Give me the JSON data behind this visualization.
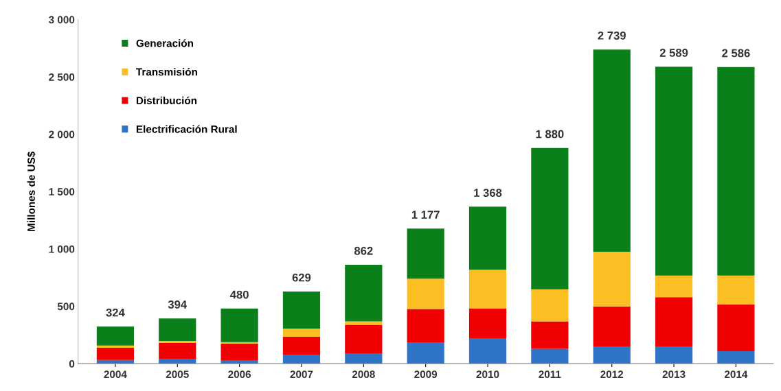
{
  "chart_data": {
    "type": "bar",
    "stacked": true,
    "ylabel": "Millones de US$",
    "categories": [
      "2004",
      "2005",
      "2006",
      "2007",
      "2008",
      "2009",
      "2010",
      "2011",
      "2012",
      "2013",
      "2014"
    ],
    "series": [
      {
        "name": "Electrificación Rural",
        "color": "#2e75c8",
        "values": [
          32,
          38,
          30,
          78,
          90,
          182,
          222,
          129,
          150,
          150,
          108
        ]
      },
      {
        "name": "Distribución",
        "color": "#f00000",
        "values": [
          106,
          142,
          144,
          156,
          248,
          294,
          260,
          240,
          348,
          429,
          408
        ]
      },
      {
        "name": "Transmisión",
        "color": "#fbbf24",
        "values": [
          20,
          18,
          14,
          72,
          30,
          264,
          337,
          279,
          478,
          189,
          252
        ]
      },
      {
        "name": "Generación",
        "color": "#0a7f1a",
        "values": [
          166,
          196,
          292,
          323,
          494,
          437,
          549,
          1232,
          1763,
          1821,
          1818
        ]
      }
    ],
    "totals": [
      "324",
      "394",
      "480",
      "629",
      "862",
      "1 177",
      "1 368",
      "1 880",
      "2 739",
      "2 589",
      "2 586"
    ],
    "ylim": [
      0,
      3000
    ],
    "yticks": [
      0,
      500,
      {
        "value": 1000,
        "label": "1 000"
      },
      {
        "value": 1500,
        "label": "1 500"
      },
      {
        "value": 2000,
        "label": "2 000"
      },
      {
        "value": 2500,
        "label": "2 500"
      },
      {
        "value": 3000,
        "label": "3 000"
      }
    ],
    "grid": false,
    "legend": "top left"
  }
}
